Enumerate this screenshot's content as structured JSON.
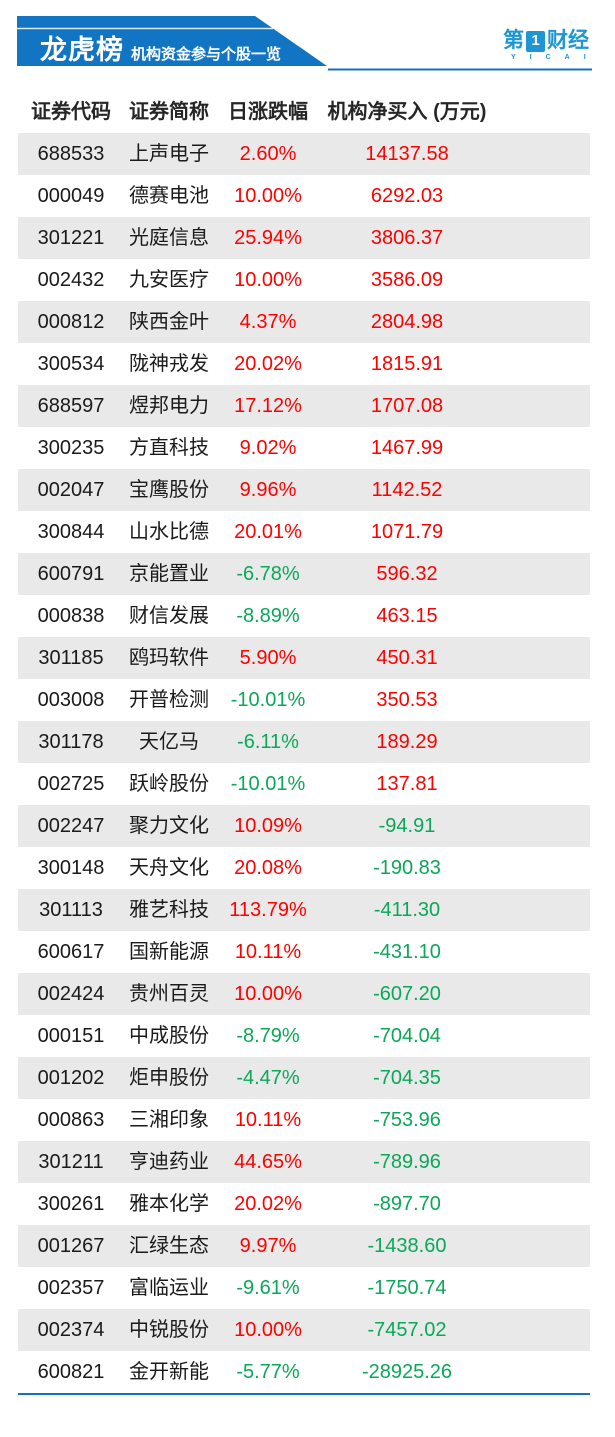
{
  "header": {
    "title": "龙虎榜",
    "subtitle": "机构资金参与个股一览",
    "logo": {
      "prefix": "第",
      "one": "1",
      "suffix": "财经",
      "sub": "YICAI"
    }
  },
  "colors": {
    "banner_blue": "#1175c3",
    "line_blue": "#1272bd",
    "logo_blue": "#1e96d2",
    "red": "#fe0000",
    "green": "#0aa858",
    "stripe": "#e9e9e9",
    "text_dark": "#1a1a1a"
  },
  "table": {
    "columns": [
      "证券代码",
      "证券简称",
      "日涨跌幅",
      "机构净买入 (万元)"
    ]
  },
  "chart_data": {
    "type": "table",
    "title": "龙虎榜",
    "subtitle": "机构资金参与个股一览",
    "columns": [
      "证券代码",
      "证券简称",
      "日涨跌幅(%)",
      "机构净买入(万元)"
    ],
    "rows": [
      [
        "688533",
        "上声电子",
        2.6,
        14137.58
      ],
      [
        "000049",
        "德赛电池",
        10.0,
        6292.03
      ],
      [
        "301221",
        "光庭信息",
        25.94,
        3806.37
      ],
      [
        "002432",
        "九安医疗",
        10.0,
        3586.09
      ],
      [
        "000812",
        "陕西金叶",
        4.37,
        2804.98
      ],
      [
        "300534",
        "陇神戎发",
        20.02,
        1815.91
      ],
      [
        "688597",
        "煜邦电力",
        17.12,
        1707.08
      ],
      [
        "300235",
        "方直科技",
        9.02,
        1467.99
      ],
      [
        "002047",
        "宝鹰股份",
        9.96,
        1142.52
      ],
      [
        "300844",
        "山水比德",
        20.01,
        1071.79
      ],
      [
        "600791",
        "京能置业",
        -6.78,
        596.32
      ],
      [
        "000838",
        "财信发展",
        -8.89,
        463.15
      ],
      [
        "301185",
        "鸥玛软件",
        5.9,
        450.31
      ],
      [
        "003008",
        "开普检测",
        -10.01,
        350.53
      ],
      [
        "301178",
        "天亿马",
        -6.11,
        189.29
      ],
      [
        "002725",
        "跃岭股份",
        -10.01,
        137.81
      ],
      [
        "002247",
        "聚力文化",
        10.09,
        -94.91
      ],
      [
        "300148",
        "天舟文化",
        20.08,
        -190.83
      ],
      [
        "301113",
        "雅艺科技",
        113.79,
        -411.3
      ],
      [
        "600617",
        "国新能源",
        10.11,
        -431.1
      ],
      [
        "002424",
        "贵州百灵",
        10.0,
        -607.2
      ],
      [
        "000151",
        "中成股份",
        -8.79,
        -704.04
      ],
      [
        "001202",
        "炬申股份",
        -4.47,
        -704.35
      ],
      [
        "000863",
        "三湘印象",
        10.11,
        -753.96
      ],
      [
        "301211",
        "亨迪药业",
        44.65,
        -789.96
      ],
      [
        "300261",
        "雅本化学",
        20.02,
        -897.7
      ],
      [
        "001267",
        "汇绿生态",
        9.97,
        -1438.6
      ],
      [
        "002357",
        "富临运业",
        -9.61,
        -1750.74
      ],
      [
        "002374",
        "中锐股份",
        10.0,
        -7457.02
      ],
      [
        "600821",
        "金开新能",
        -5.77,
        -28925.26
      ]
    ],
    "color_rule": "value >= 0 shown red, value < 0 shown green",
    "legend_position": "none",
    "grid": "zebra-striped rows"
  }
}
